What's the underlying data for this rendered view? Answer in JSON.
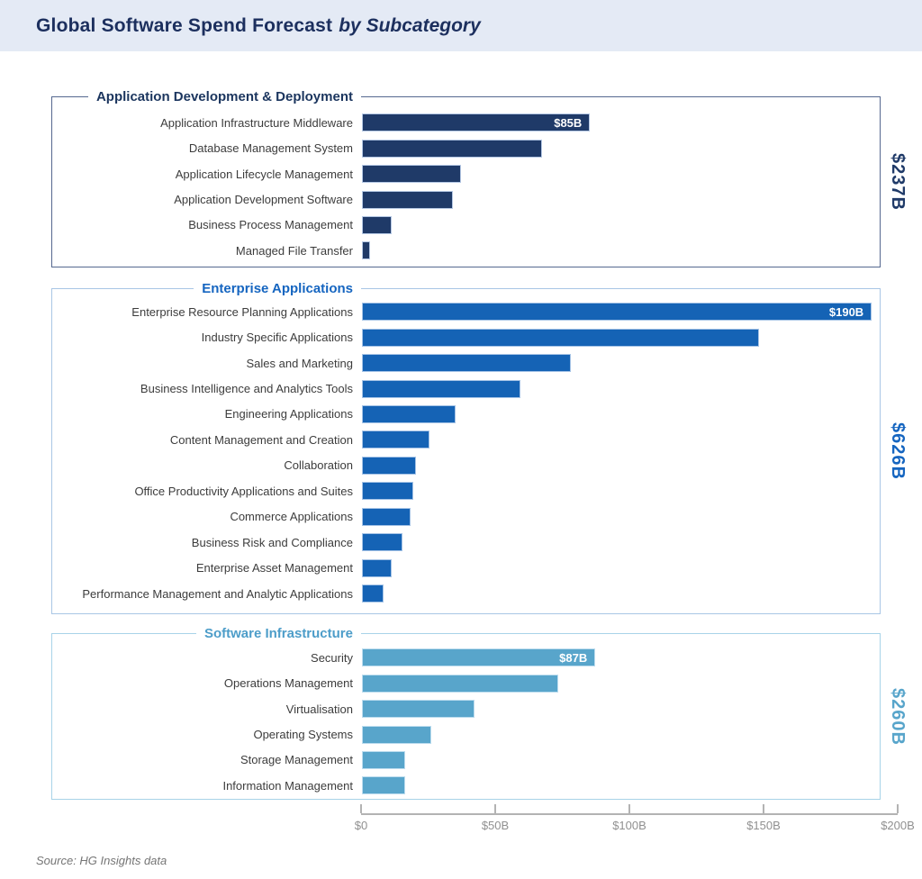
{
  "header": {
    "title": "Global Software Spend Forecast",
    "subtitle": "by Subcategory"
  },
  "footer": {
    "source": "Source: HG Insights data"
  },
  "colors": {
    "header_background": "#e4eaf5",
    "title_navy": "#1c2f5e",
    "group1_bar": "#1f3a68",
    "group2_bar": "#1563b5",
    "group3_bar": "#58a5cb",
    "axis_gray": "#b3b3b3"
  },
  "chart_data": {
    "type": "bar",
    "orientation": "horizontal",
    "unit": "billions USD",
    "grid": false,
    "x_axis": {
      "min": 0,
      "max": 200,
      "tick_values": [
        0,
        50,
        100,
        150,
        200
      ],
      "tick_labels": [
        "$0",
        "$50B",
        "$100B",
        "$150B",
        "$200B"
      ]
    },
    "groups": [
      {
        "name": "Application Development & Deployment",
        "total_label": "$237B",
        "color": "#1f3a68",
        "items": [
          {
            "label": "Application Infrastructure Middleware",
            "value": 85,
            "value_label": "$85B"
          },
          {
            "label": "Database Management System",
            "value": 67
          },
          {
            "label": "Application Lifecycle Management",
            "value": 37
          },
          {
            "label": "Application Development Software",
            "value": 34
          },
          {
            "label": "Business Process Management",
            "value": 11
          },
          {
            "label": "Managed File Transfer",
            "value": 3
          }
        ]
      },
      {
        "name": "Enterprise Applications",
        "total_label": "$626B",
        "color": "#1563b5",
        "items": [
          {
            "label": "Enterprise Resource Planning Applications",
            "value": 190,
            "value_label": "$190B"
          },
          {
            "label": "Industry Specific Applications",
            "value": 148
          },
          {
            "label": "Sales and Marketing",
            "value": 78
          },
          {
            "label": "Business Intelligence and Analytics Tools",
            "value": 59
          },
          {
            "label": "Engineering Applications",
            "value": 35
          },
          {
            "label": "Content Management and Creation",
            "value": 25
          },
          {
            "label": "Collaboration",
            "value": 20
          },
          {
            "label": "Office Productivity Applications and Suites",
            "value": 19
          },
          {
            "label": "Commerce Applications",
            "value": 18
          },
          {
            "label": "Business Risk and Compliance",
            "value": 15
          },
          {
            "label": "Enterprise Asset Management",
            "value": 11
          },
          {
            "label": "Performance Management and Analytic Applications",
            "value": 8
          }
        ]
      },
      {
        "name": "Software Infrastructure",
        "total_label": "$260B",
        "color": "#58a5cb",
        "items": [
          {
            "label": "Security",
            "value": 87,
            "value_label": "$87B"
          },
          {
            "label": "Operations Management",
            "value": 73
          },
          {
            "label": "Virtualisation",
            "value": 42
          },
          {
            "label": "Operating Systems",
            "value": 26
          },
          {
            "label": "Storage Management",
            "value": 16
          },
          {
            "label": "Information Management",
            "value": 16
          }
        ]
      }
    ]
  }
}
